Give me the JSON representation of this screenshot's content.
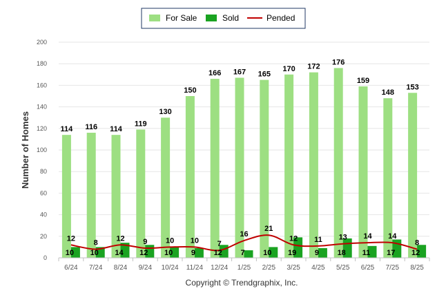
{
  "chart_data": {
    "type": "bar",
    "title": "",
    "xlabel": "",
    "ylabel": "Number of Homes",
    "ylim": [
      0,
      200
    ],
    "yticks": [
      0,
      20,
      40,
      60,
      80,
      100,
      120,
      140,
      160,
      180,
      200
    ],
    "categories": [
      "6/24",
      "7/24",
      "8/24",
      "9/24",
      "10/24",
      "11/24",
      "12/24",
      "1/25",
      "2/25",
      "3/25",
      "4/25",
      "5/25",
      "6/25",
      "7/25",
      "8/25"
    ],
    "series": [
      {
        "name": "For Sale",
        "type": "bar",
        "color": "#9ddf82",
        "values": [
          114,
          116,
          114,
          119,
          130,
          150,
          166,
          167,
          165,
          170,
          172,
          176,
          159,
          148,
          153
        ]
      },
      {
        "name": "Sold",
        "type": "bar",
        "color": "#1aa321",
        "values": [
          10,
          10,
          14,
          12,
          10,
          9,
          12,
          7,
          10,
          19,
          9,
          18,
          11,
          17,
          12
        ]
      },
      {
        "name": "Pended",
        "type": "line",
        "color": "#c00000",
        "values": [
          12,
          8,
          12,
          9,
          10,
          10,
          7,
          16,
          21,
          12,
          11,
          13,
          14,
          14,
          8
        ]
      }
    ],
    "legend": "top-center",
    "grid": true,
    "footer": "Copyright © Trendgraphix, Inc."
  }
}
